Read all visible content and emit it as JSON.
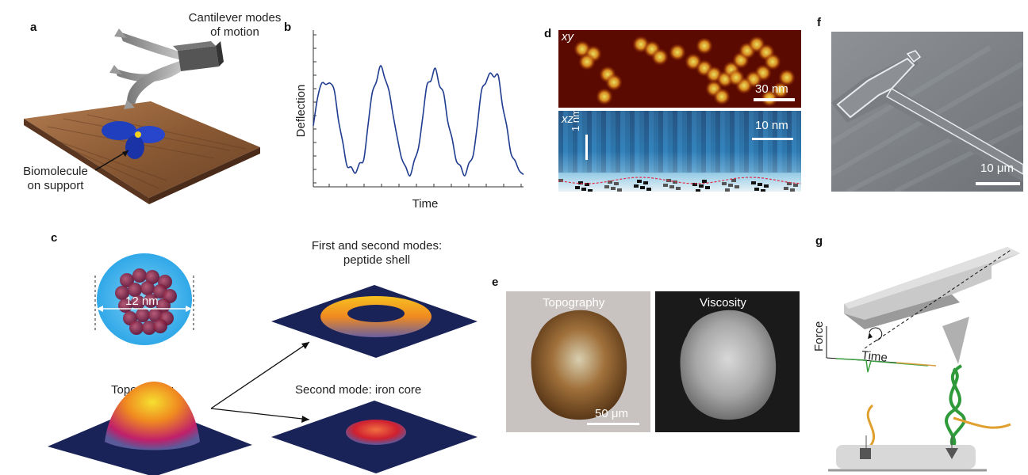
{
  "panels": {
    "a": {
      "letter": "a",
      "cantilever_label": "Cantilever modes\nof motion",
      "biomolecule_label": "Biomolecule\non support"
    },
    "b": {
      "letter": "b",
      "ylabel": "Deflection",
      "xlabel": "Time"
    },
    "c": {
      "letter": "c",
      "size_label": "12 nm",
      "topography_label": "Topography",
      "modes_label": "First and second modes:\npeptide shell",
      "second_mode_label": "Second mode: iron core"
    },
    "d": {
      "letter": "d",
      "xy_label": "xy",
      "xy_scale": "30 nm",
      "xz_label": "xz",
      "xz_scale": "10 nm",
      "xz_vscale": "1 nm"
    },
    "e": {
      "letter": "e",
      "topography_label": "Topography",
      "viscosity_label": "Viscosity",
      "scale": "50 μm"
    },
    "f": {
      "letter": "f",
      "scale": "10 μm"
    },
    "g": {
      "letter": "g",
      "force_label": "Force",
      "time_label": "Time"
    }
  },
  "chart_data": {
    "type": "line",
    "title": "",
    "xlabel": "Time",
    "ylabel": "Deflection",
    "x": [
      0,
      2,
      4,
      6,
      8,
      10,
      12,
      14,
      16,
      18,
      20,
      22,
      24,
      26,
      28,
      30,
      32,
      34,
      36,
      38,
      40,
      42,
      44,
      46,
      48,
      50,
      52,
      54,
      56,
      58,
      60,
      62,
      64,
      66,
      68,
      70,
      72,
      74,
      76,
      78,
      80,
      82,
      84,
      86,
      88,
      90,
      92,
      94,
      96,
      98,
      100
    ],
    "series": [
      {
        "values": [
          0.4,
          0.62,
          0.74,
          0.73,
          0.74,
          0.68,
          0.44,
          0.27,
          0.08,
          0.07,
          0.02,
          0.1,
          0.13,
          0.4,
          0.66,
          0.75,
          0.88,
          0.78,
          0.68,
          0.48,
          0.3,
          0.14,
          0.07,
          0.0,
          0.12,
          0.22,
          0.46,
          0.72,
          0.76,
          0.86,
          0.72,
          0.66,
          0.43,
          0.3,
          0.12,
          0.08,
          0.0,
          0.1,
          0.16,
          0.4,
          0.68,
          0.74,
          0.82,
          0.79,
          0.8,
          0.56,
          0.4,
          0.18,
          0.12,
          0.04,
          0.01
        ]
      }
    ],
    "ylim": [
      0,
      1
    ]
  }
}
